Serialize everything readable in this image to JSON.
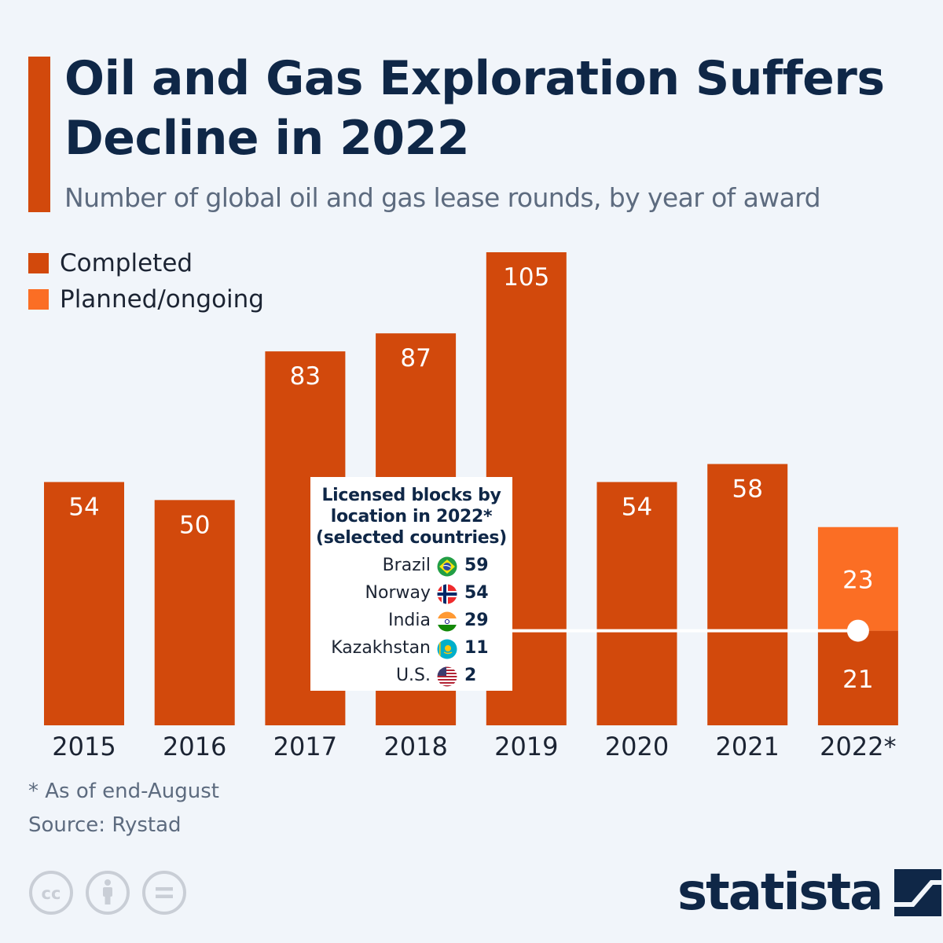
{
  "title": "Oil and Gas Exploration Suffers Decline in 2022",
  "subtitle": "Number of global oil and gas lease rounds, by year of award",
  "legend": [
    {
      "label": "Completed",
      "color": "#d2490c"
    },
    {
      "label": "Planned/ongoing",
      "color": "#fb6e24"
    }
  ],
  "chart_data": {
    "type": "bar",
    "stacked": true,
    "title": "Oil and Gas Exploration Suffers Decline in 2022",
    "subtitle": "Number of global oil and gas lease rounds, by year of award",
    "categories": [
      "2015",
      "2016",
      "2017",
      "2018",
      "2019",
      "2020",
      "2021",
      "2022*"
    ],
    "series": [
      {
        "name": "Completed",
        "values": [
          54,
          50,
          83,
          87,
          105,
          54,
          58,
          21
        ],
        "color": "#d2490c"
      },
      {
        "name": "Planned/ongoing",
        "values": [
          null,
          null,
          null,
          null,
          null,
          null,
          null,
          23
        ],
        "color": "#fb6e24"
      }
    ],
    "ylim": [
      0,
      105
    ],
    "reference_line": 21,
    "xlabel": "",
    "ylabel": ""
  },
  "inset": {
    "title_line1": "Licensed blocks by",
    "title_line2": "location in 2022*",
    "title_line3": "(selected countries)",
    "rows": [
      {
        "country": "Brazil",
        "flag": "brazil-flag-icon",
        "value": "59"
      },
      {
        "country": "Norway",
        "flag": "norway-flag-icon",
        "value": "54"
      },
      {
        "country": "India",
        "flag": "india-flag-icon",
        "value": "29"
      },
      {
        "country": "Kazakhstan",
        "flag": "kazakhstan-flag-icon",
        "value": "11"
      },
      {
        "country": "U.S.",
        "flag": "us-flag-icon",
        "value": "2"
      }
    ]
  },
  "footnote": "* As of end-August",
  "source": "Source: Rystad",
  "brand": "statista",
  "license_icons": [
    "cc-icon",
    "attribution-icon",
    "no-derivatives-icon"
  ]
}
